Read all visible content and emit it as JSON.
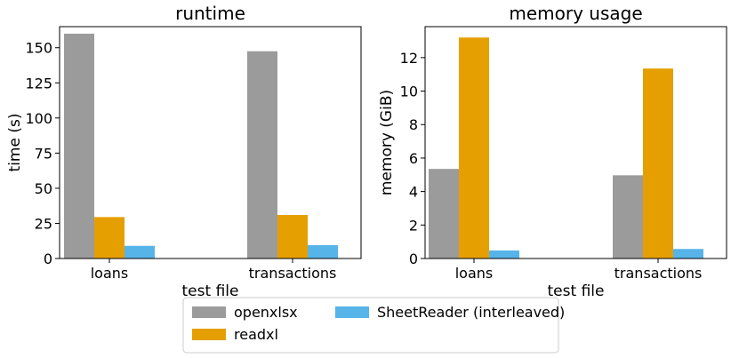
{
  "chart_data": [
    {
      "type": "bar",
      "title": "runtime",
      "xlabel": "test file",
      "ylabel": "time (s)",
      "categories": [
        "loans",
        "transactions"
      ],
      "ylim": [
        0,
        165
      ],
      "yticks": [
        0,
        25,
        50,
        75,
        100,
        125,
        150
      ],
      "grid": false,
      "series": [
        {
          "name": "openxlsx",
          "values": [
            160,
            147.5
          ],
          "color": "#9b9b9b"
        },
        {
          "name": "readxl",
          "values": [
            29.5,
            31
          ],
          "color": "#e69f00"
        },
        {
          "name": "SheetReader (interleaved)",
          "values": [
            9,
            9.5
          ],
          "color": "#56b4e9"
        }
      ]
    },
    {
      "type": "bar",
      "title": "memory usage",
      "xlabel": "test file",
      "ylabel": "memory (GiB)",
      "categories": [
        "loans",
        "transactions"
      ],
      "ylim": [
        0,
        13.85
      ],
      "yticks": [
        0,
        2,
        4,
        6,
        8,
        10,
        12
      ],
      "grid": false,
      "series": [
        {
          "name": "openxlsx",
          "values": [
            5.35,
            4.97
          ],
          "color": "#9b9b9b"
        },
        {
          "name": "readxl",
          "values": [
            13.2,
            11.35
          ],
          "color": "#e69f00"
        },
        {
          "name": "SheetReader (interleaved)",
          "values": [
            0.48,
            0.57
          ],
          "color": "#56b4e9"
        }
      ]
    }
  ],
  "legend": {
    "placement": "bottom-center",
    "entries": [
      {
        "label": "openxlsx",
        "color": "#9b9b9b"
      },
      {
        "label": "readxl",
        "color": "#e69f00"
      },
      {
        "label": "SheetReader (interleaved)",
        "color": "#56b4e9"
      }
    ]
  }
}
